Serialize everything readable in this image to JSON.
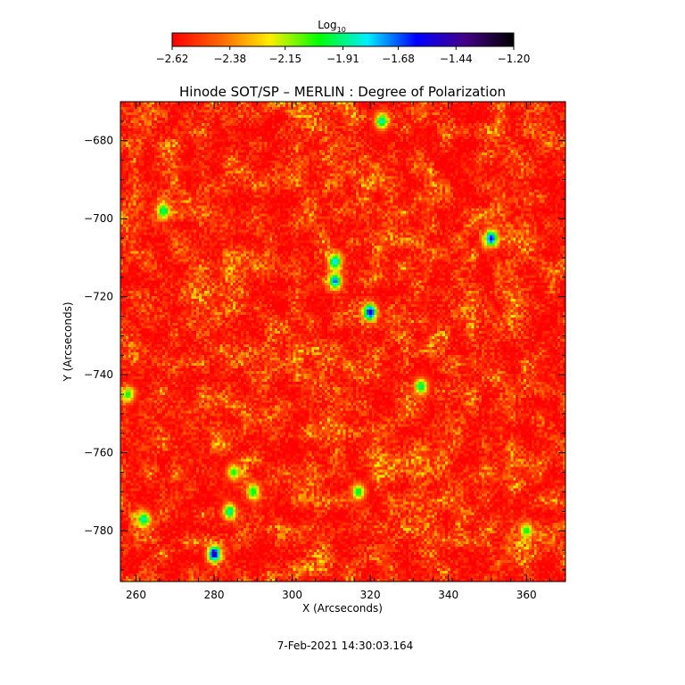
{
  "chart_data": {
    "type": "heatmap",
    "title": "Hinode SOT/SP – MERLIN : Degree of Polarization",
    "xlabel": "X (Arcseconds)",
    "ylabel": "Y (Arcseconds)",
    "xlim": [
      256,
      370
    ],
    "ylim": [
      -793,
      -670
    ],
    "x_ticks": [
      260,
      280,
      300,
      320,
      340,
      360
    ],
    "x_tick_labels": [
      "260",
      "280",
      "300",
      "320",
      "340",
      "360"
    ],
    "y_ticks": [
      -680,
      -700,
      -720,
      -740,
      -760,
      -780
    ],
    "y_tick_labels": [
      "−680",
      "−700",
      "−720",
      "−740",
      "−760",
      "−780"
    ],
    "colorbar": {
      "label_main": "Log",
      "label_sub": "10",
      "min": -2.62,
      "max": -1.2,
      "ticks": [
        -2.62,
        -2.38,
        -2.15,
        -1.91,
        -1.68,
        -1.44,
        -1.2
      ],
      "tick_labels": [
        "−2.62",
        "−2.38",
        "−2.15",
        "−1.91",
        "−1.68",
        "−1.44",
        "−1.20"
      ],
      "colors": [
        "#ff0000",
        "#ff6600",
        "#ffee00",
        "#00ff00",
        "#00eeff",
        "#0000ff",
        "#440088",
        "#000000"
      ]
    },
    "features": [
      {
        "x": 320,
        "y": -724,
        "value": -1.5
      },
      {
        "x": 311,
        "y": -711,
        "value": -1.75
      },
      {
        "x": 311,
        "y": -716,
        "value": -1.65
      },
      {
        "x": 351,
        "y": -705,
        "value": -1.6
      },
      {
        "x": 280,
        "y": -786,
        "value": -1.45
      },
      {
        "x": 262,
        "y": -777,
        "value": -1.85
      },
      {
        "x": 284,
        "y": -775,
        "value": -1.85
      },
      {
        "x": 267,
        "y": -698,
        "value": -1.9
      },
      {
        "x": 323,
        "y": -675,
        "value": -1.85
      },
      {
        "x": 333,
        "y": -743,
        "value": -1.9
      },
      {
        "x": 317,
        "y": -770,
        "value": -1.95
      },
      {
        "x": 290,
        "y": -770,
        "value": -1.95
      },
      {
        "x": 285,
        "y": -765,
        "value": -2.0
      },
      {
        "x": 258,
        "y": -745,
        "value": -2.0
      },
      {
        "x": 360,
        "y": -780,
        "value": -2.0
      }
    ]
  },
  "footer": {
    "date": "7-Feb-2021 14:30:03.164"
  }
}
